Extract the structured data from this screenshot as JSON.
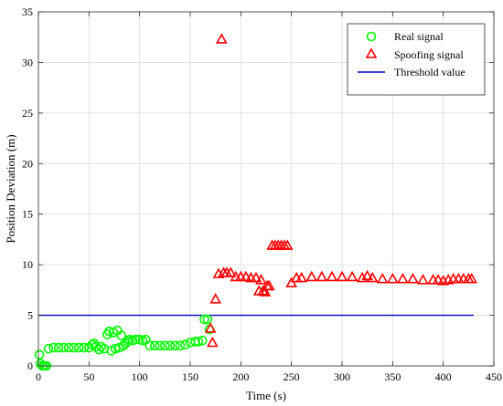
{
  "chart_data": {
    "type": "scatter",
    "title": "",
    "xlabel": "Time (s)",
    "ylabel": "Position Deviation (m)",
    "xlim": [
      0,
      450
    ],
    "ylim": [
      0,
      35
    ],
    "xticks": [
      0,
      50,
      100,
      150,
      200,
      250,
      300,
      350,
      400,
      450
    ],
    "yticks": [
      0,
      5,
      10,
      15,
      20,
      25,
      30,
      35
    ],
    "grid": true,
    "legend_position": "top-right",
    "series": [
      {
        "name": "Real signal",
        "marker": "circle",
        "color": "#00ff00",
        "points": [
          [
            1,
            1.1
          ],
          [
            2,
            0.2
          ],
          [
            4,
            0
          ],
          [
            6,
            0
          ],
          [
            8,
            0
          ],
          [
            10,
            1.7
          ],
          [
            15,
            1.8
          ],
          [
            20,
            1.8
          ],
          [
            25,
            1.8
          ],
          [
            30,
            1.8
          ],
          [
            35,
            1.8
          ],
          [
            40,
            1.8
          ],
          [
            45,
            1.8
          ],
          [
            50,
            1.8
          ],
          [
            53,
            2.1
          ],
          [
            55,
            2.2
          ],
          [
            57,
            1.9
          ],
          [
            60,
            1.6
          ],
          [
            62,
            1.9
          ],
          [
            65,
            1.7
          ],
          [
            68,
            3.1
          ],
          [
            70,
            3.4
          ],
          [
            72,
            1.5
          ],
          [
            74,
            3.3
          ],
          [
            76,
            1.7
          ],
          [
            78,
            3.5
          ],
          [
            80,
            1.8
          ],
          [
            82,
            3.0
          ],
          [
            84,
            2.0
          ],
          [
            86,
            2.2
          ],
          [
            88,
            2.4
          ],
          [
            90,
            2.6
          ],
          [
            93,
            2.5
          ],
          [
            96,
            2.6
          ],
          [
            100,
            2.6
          ],
          [
            103,
            2.5
          ],
          [
            106,
            2.6
          ],
          [
            110,
            2.0
          ],
          [
            115,
            2.0
          ],
          [
            120,
            2.0
          ],
          [
            125,
            2.0
          ],
          [
            130,
            2.0
          ],
          [
            135,
            2.0
          ],
          [
            140,
            2.0
          ],
          [
            145,
            2.1
          ],
          [
            150,
            2.3
          ],
          [
            155,
            2.4
          ],
          [
            158,
            2.4
          ],
          [
            162,
            2.5
          ],
          [
            164,
            4.6
          ],
          [
            167,
            4.6
          ],
          [
            169,
            3.6
          ]
        ]
      },
      {
        "name": "Spoofing signal",
        "marker": "triangle",
        "color": "#ff0000",
        "points": [
          [
            170,
            3.7
          ],
          [
            172,
            2.3
          ],
          [
            175,
            6.6
          ],
          [
            178,
            9.1
          ],
          [
            181,
            32.3
          ],
          [
            183,
            9.2
          ],
          [
            186,
            9.2
          ],
          [
            190,
            9.2
          ],
          [
            195,
            8.8
          ],
          [
            200,
            8.8
          ],
          [
            205,
            8.8
          ],
          [
            210,
            8.7
          ],
          [
            215,
            8.7
          ],
          [
            218,
            7.4
          ],
          [
            220,
            8.5
          ],
          [
            222,
            7.4
          ],
          [
            224,
            7.3
          ],
          [
            226,
            7.9
          ],
          [
            228,
            7.9
          ],
          [
            231,
            11.9
          ],
          [
            234,
            11.9
          ],
          [
            237,
            11.9
          ],
          [
            240,
            11.9
          ],
          [
            243,
            11.9
          ],
          [
            246,
            11.9
          ],
          [
            250,
            8.2
          ],
          [
            255,
            8.7
          ],
          [
            260,
            8.7
          ],
          [
            270,
            8.8
          ],
          [
            280,
            8.8
          ],
          [
            290,
            8.8
          ],
          [
            300,
            8.8
          ],
          [
            310,
            8.8
          ],
          [
            320,
            8.7
          ],
          [
            325,
            8.9
          ],
          [
            330,
            8.7
          ],
          [
            340,
            8.6
          ],
          [
            350,
            8.6
          ],
          [
            360,
            8.6
          ],
          [
            370,
            8.6
          ],
          [
            380,
            8.5
          ],
          [
            390,
            8.5
          ],
          [
            395,
            8.5
          ],
          [
            400,
            8.4
          ],
          [
            405,
            8.5
          ],
          [
            410,
            8.6
          ],
          [
            415,
            8.6
          ],
          [
            420,
            8.6
          ],
          [
            425,
            8.6
          ],
          [
            428,
            8.6
          ]
        ]
      },
      {
        "name": "Threshold value",
        "marker": "line",
        "color": "#0000cc",
        "points": [
          [
            0,
            5
          ],
          [
            430,
            5
          ]
        ]
      }
    ]
  }
}
